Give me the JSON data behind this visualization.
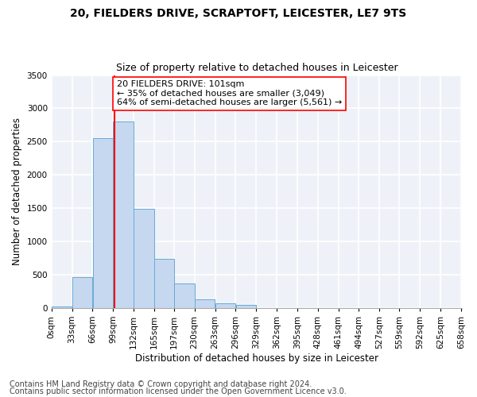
{
  "title_line1": "20, FIELDERS DRIVE, SCRAPTOFT, LEICESTER, LE7 9TS",
  "title_line2": "Size of property relative to detached houses in Leicester",
  "xlabel": "Distribution of detached houses by size in Leicester",
  "ylabel": "Number of detached properties",
  "bar_color": "#c5d8f0",
  "bar_edge_color": "#6aaad4",
  "annotation_line_color": "red",
  "annotation_property": "20 FIELDERS DRIVE: 101sqm",
  "annotation_smaller": "← 35% of detached houses are smaller (3,049)",
  "annotation_larger": "64% of semi-detached houses are larger (5,561) →",
  "property_sqm": 101,
  "bin_width": 33,
  "bin_starts": [
    0,
    33,
    66,
    99,
    132,
    165,
    197,
    230,
    263,
    296,
    329,
    362,
    395,
    428,
    461,
    494,
    527,
    559,
    592,
    625
  ],
  "bin_labels": [
    "0sqm",
    "33sqm",
    "66sqm",
    "99sqm",
    "132sqm",
    "165sqm",
    "197sqm",
    "230sqm",
    "263sqm",
    "296sqm",
    "329sqm",
    "362sqm",
    "395sqm",
    "428sqm",
    "461sqm",
    "494sqm",
    "527sqm",
    "559sqm",
    "592sqm",
    "625sqm",
    "658sqm"
  ],
  "bar_heights": [
    20,
    460,
    2550,
    2800,
    1490,
    735,
    370,
    125,
    70,
    50,
    0,
    0,
    0,
    0,
    0,
    0,
    0,
    0,
    0,
    0
  ],
  "ylim": [
    0,
    3500
  ],
  "yticks": [
    0,
    500,
    1000,
    1500,
    2000,
    2500,
    3000,
    3500
  ],
  "background_color": "#eef2f8",
  "grid_color": "#ffffff",
  "footer_line1": "Contains HM Land Registry data © Crown copyright and database right 2024.",
  "footer_line2": "Contains public sector information licensed under the Open Government Licence v3.0.",
  "title_fontsize": 10,
  "subtitle_fontsize": 9,
  "axis_label_fontsize": 8.5,
  "tick_fontsize": 7.5,
  "annotation_fontsize": 8,
  "footer_fontsize": 7
}
